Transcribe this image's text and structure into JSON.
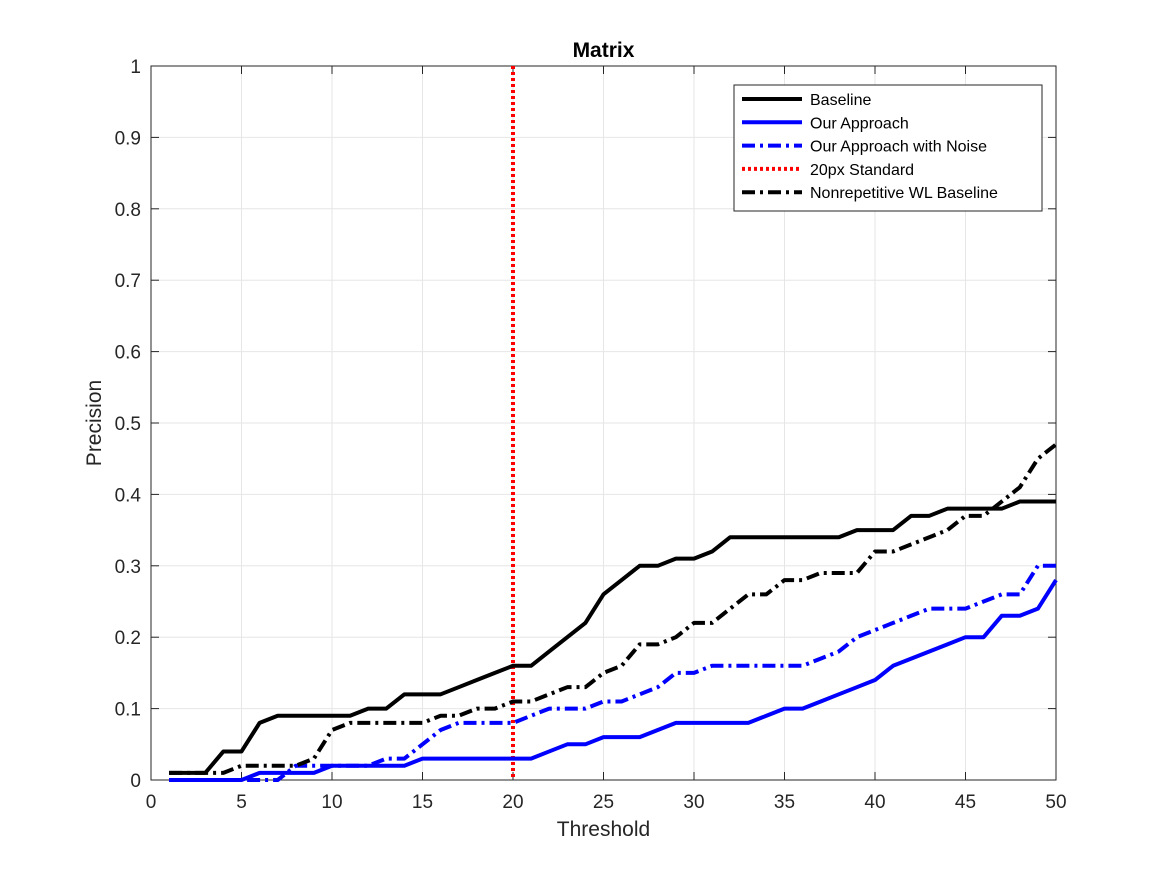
{
  "chart_data": {
    "type": "line",
    "title": "Matrix",
    "xlabel": "Threshold",
    "ylabel": "Precision",
    "xlim": [
      0,
      50
    ],
    "ylim": [
      0,
      1
    ],
    "xticks": [
      0,
      5,
      10,
      15,
      20,
      25,
      30,
      35,
      40,
      45,
      50
    ],
    "yticks": [
      0,
      0.1,
      0.2,
      0.3,
      0.4,
      0.5,
      0.6,
      0.7,
      0.8,
      0.9,
      1
    ],
    "xtick_labels": [
      "0",
      "5",
      "10",
      "15",
      "20",
      "25",
      "30",
      "35",
      "40",
      "45",
      "50"
    ],
    "ytick_labels": [
      "0",
      "0.1",
      "0.2",
      "0.3",
      "0.4",
      "0.5",
      "0.6",
      "0.7",
      "0.8",
      "0.9",
      "1"
    ],
    "grid": true,
    "legend_position": "top-right",
    "x": [
      1,
      2,
      3,
      4,
      5,
      6,
      7,
      8,
      9,
      10,
      11,
      12,
      13,
      14,
      15,
      16,
      17,
      18,
      19,
      20,
      21,
      22,
      23,
      24,
      25,
      26,
      27,
      28,
      29,
      30,
      31,
      32,
      33,
      34,
      35,
      36,
      37,
      38,
      39,
      40,
      41,
      42,
      43,
      44,
      45,
      46,
      47,
      48,
      49,
      50
    ],
    "series": [
      {
        "name": "Baseline",
        "color": "#000000",
        "style": "solid",
        "values": [
          0.01,
          0.01,
          0.01,
          0.04,
          0.04,
          0.08,
          0.09,
          0.09,
          0.09,
          0.09,
          0.09,
          0.1,
          0.1,
          0.12,
          0.12,
          0.12,
          0.13,
          0.14,
          0.15,
          0.16,
          0.16,
          0.18,
          0.2,
          0.22,
          0.26,
          0.28,
          0.3,
          0.3,
          0.31,
          0.31,
          0.32,
          0.34,
          0.34,
          0.34,
          0.34,
          0.34,
          0.34,
          0.34,
          0.35,
          0.35,
          0.35,
          0.37,
          0.37,
          0.38,
          0.38,
          0.38,
          0.38,
          0.39,
          0.39,
          0.39
        ]
      },
      {
        "name": "Our Approach",
        "color": "#0000ff",
        "style": "solid",
        "values": [
          0,
          0,
          0,
          0,
          0,
          0.01,
          0.01,
          0.01,
          0.01,
          0.02,
          0.02,
          0.02,
          0.02,
          0.02,
          0.03,
          0.03,
          0.03,
          0.03,
          0.03,
          0.03,
          0.03,
          0.04,
          0.05,
          0.05,
          0.06,
          0.06,
          0.06,
          0.07,
          0.08,
          0.08,
          0.08,
          0.08,
          0.08,
          0.09,
          0.1,
          0.1,
          0.11,
          0.12,
          0.13,
          0.14,
          0.16,
          0.17,
          0.18,
          0.19,
          0.2,
          0.2,
          0.23,
          0.23,
          0.24,
          0.28
        ]
      },
      {
        "name": "Our Approach with Noise",
        "color": "#0000ff",
        "style": "dashdot",
        "values": [
          0,
          0,
          0,
          0,
          0,
          0,
          0,
          0.02,
          0.02,
          0.02,
          0.02,
          0.02,
          0.03,
          0.03,
          0.05,
          0.07,
          0.08,
          0.08,
          0.08,
          0.08,
          0.09,
          0.1,
          0.1,
          0.1,
          0.11,
          0.11,
          0.12,
          0.13,
          0.15,
          0.15,
          0.16,
          0.16,
          0.16,
          0.16,
          0.16,
          0.16,
          0.17,
          0.18,
          0.2,
          0.21,
          0.22,
          0.23,
          0.24,
          0.24,
          0.24,
          0.25,
          0.26,
          0.26,
          0.3,
          0.3
        ]
      },
      {
        "name": "20px Standard",
        "color": "#ff0000",
        "style": "dotted",
        "vertical_x": 20
      },
      {
        "name": "Nonrepetitive WL Baseline",
        "color": "#000000",
        "style": "dashdot",
        "values": [
          0.01,
          0.01,
          0.01,
          0.01,
          0.02,
          0.02,
          0.02,
          0.02,
          0.03,
          0.07,
          0.08,
          0.08,
          0.08,
          0.08,
          0.08,
          0.09,
          0.09,
          0.1,
          0.1,
          0.11,
          0.11,
          0.12,
          0.13,
          0.13,
          0.15,
          0.16,
          0.19,
          0.19,
          0.2,
          0.22,
          0.22,
          0.24,
          0.26,
          0.26,
          0.28,
          0.28,
          0.29,
          0.29,
          0.29,
          0.32,
          0.32,
          0.33,
          0.34,
          0.35,
          0.37,
          0.37,
          0.39,
          0.41,
          0.45,
          0.47
        ]
      }
    ]
  }
}
